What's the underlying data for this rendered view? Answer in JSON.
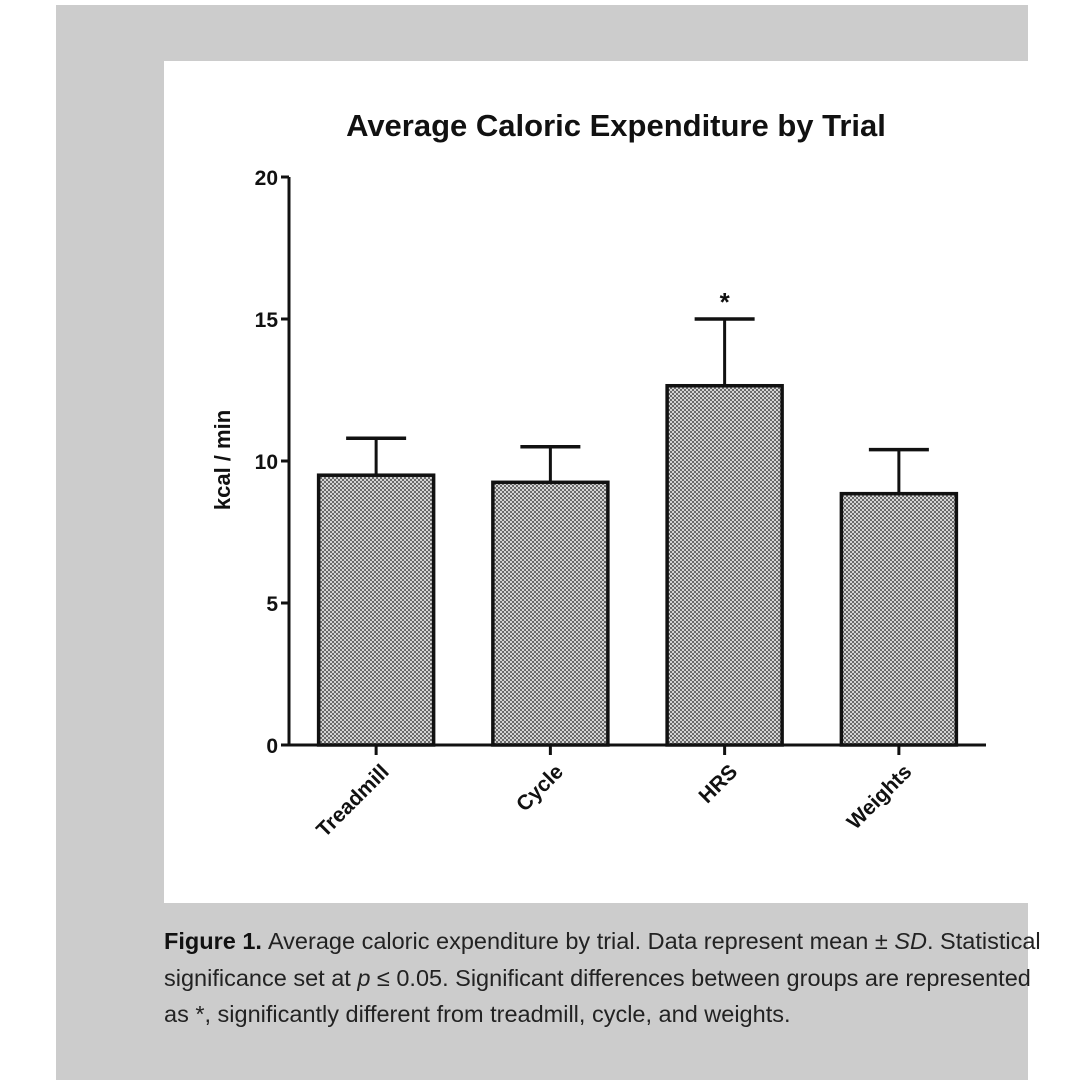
{
  "chart_data": {
    "type": "bar",
    "title": "Average Caloric Expenditure by Trial",
    "xlabel": "",
    "ylabel": "kcal / min",
    "ylim": [
      0,
      20
    ],
    "yticks": [
      0,
      5,
      10,
      15,
      20
    ],
    "categories": [
      "Treadmill",
      "Cycle",
      "HRS",
      "Weights"
    ],
    "values": [
      9.5,
      9.25,
      12.65,
      8.85
    ],
    "error_sd": [
      1.3,
      1.25,
      2.35,
      1.55
    ],
    "significance": [
      "",
      "",
      "*",
      ""
    ],
    "bar_fill": "crosshatch-gray",
    "grid": false,
    "legend": "none"
  },
  "colors": {
    "panel_background": "#cccccc",
    "plot_background": "#ffffff",
    "bar_fill": "#9a9a9a",
    "bar_stroke": "#111111",
    "axis": "#111111"
  },
  "caption": {
    "label": "Figure 1.",
    "part1": "Average caloric expenditure by trial. Data represent mean ±",
    "sd": "SD",
    "part2": ". Statistical significance set at",
    "p": "p",
    "part3": "≤ 0.05. Significant differences between groups are represented as *, significantly different from treadmill, cycle, and weights."
  }
}
